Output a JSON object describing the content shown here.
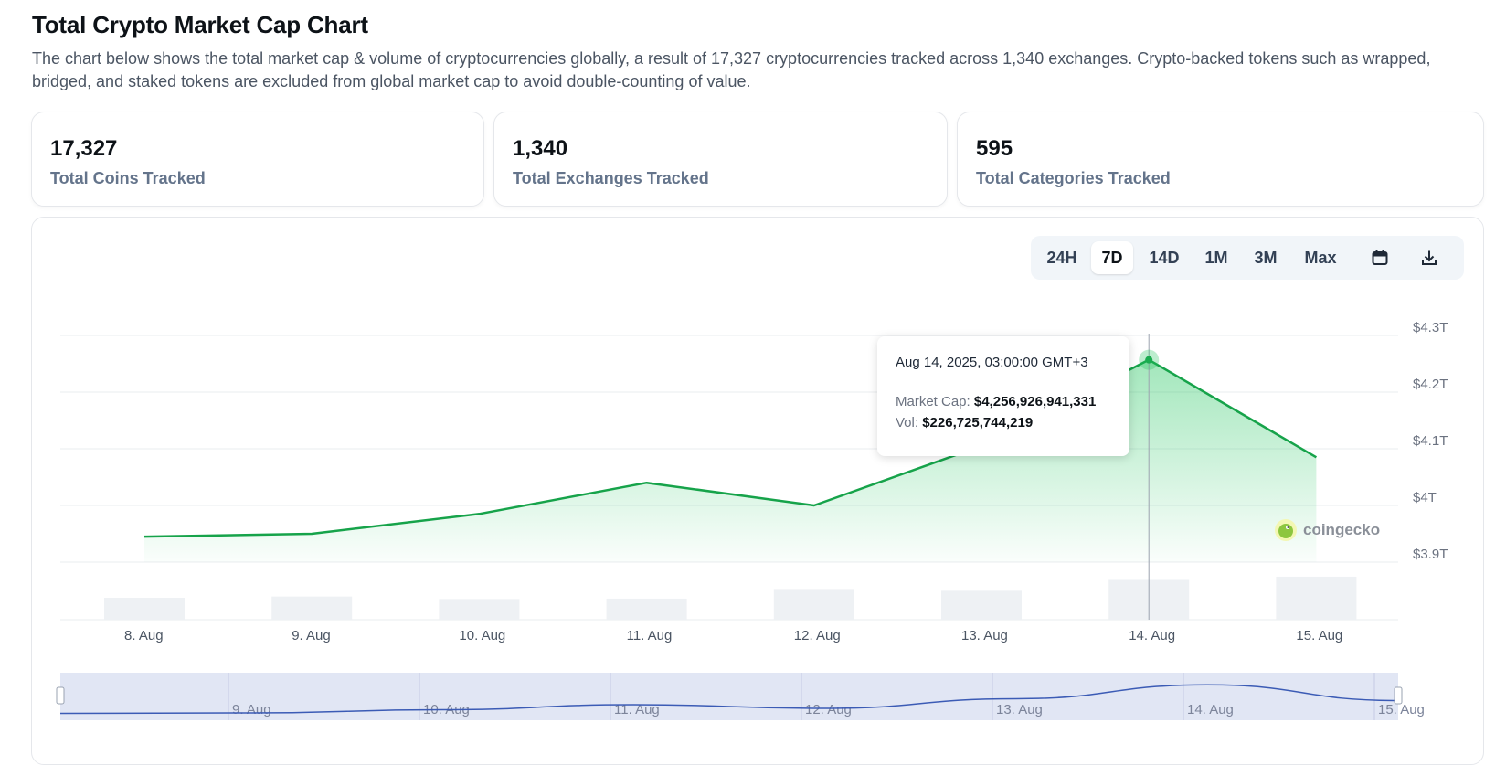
{
  "header": {
    "title": "Total Crypto Market Cap Chart",
    "description": "The chart below shows the total market cap & volume of cryptocurrencies globally, a result of 17,327 cryptocurrencies tracked across 1,340 exchanges. Crypto-backed tokens such as wrapped, bridged, and staked tokens are excluded from global market cap to avoid double-counting of value."
  },
  "stats": [
    {
      "value": "17,327",
      "label": "Total Coins Tracked"
    },
    {
      "value": "1,340",
      "label": "Total Exchanges Tracked"
    },
    {
      "value": "595",
      "label": "Total Categories Tracked"
    }
  ],
  "range_selector": {
    "options": [
      "24H",
      "7D",
      "14D",
      "1M",
      "3M",
      "Max"
    ],
    "selected": "7D",
    "icons": [
      "calendar-icon",
      "download-icon"
    ]
  },
  "tooltip": {
    "date": "Aug 14, 2025, 03:00:00 GMT+3",
    "market_cap_label": "Market Cap:",
    "market_cap_value": "$4,256,926,941,331",
    "vol_label": "Vol:",
    "vol_value": "$226,725,744,219"
  },
  "watermark": "coingecko",
  "colors": {
    "line": "#16a34a",
    "area": "#22c55e",
    "volume_bar": "#eef1f4",
    "navigator_fill": "#d7ddf0",
    "navigator_line": "#3b5bb5"
  },
  "chart_data": {
    "type": "line",
    "title": "",
    "xlabel": "",
    "ylabel": "",
    "x_tick_labels": [
      "8. Aug",
      "9. Aug",
      "10. Aug",
      "11. Aug",
      "12. Aug",
      "13. Aug",
      "14. Aug",
      "15. Aug"
    ],
    "y_tick_labels": [
      "$3.9T",
      "$4T",
      "$4.1T",
      "$4.2T",
      "$4.3T"
    ],
    "y_ticks": [
      3.9,
      4.0,
      4.1,
      4.2,
      4.3
    ],
    "ylim": [
      3.9,
      4.3
    ],
    "grid": true,
    "series": [
      {
        "name": "Market Cap",
        "x": [
          "8. Aug",
          "9. Aug",
          "10. Aug",
          "11. Aug",
          "12. Aug",
          "13. Aug",
          "14. Aug",
          "15. Aug"
        ],
        "values": [
          3.945,
          3.95,
          3.985,
          4.04,
          4.0,
          4.105,
          4.257,
          4.085
        ]
      },
      {
        "name": "Vol",
        "x": [
          "8. Aug",
          "9. Aug",
          "10. Aug",
          "11. Aug",
          "12. Aug",
          "13. Aug",
          "14. Aug",
          "15. Aug"
        ],
        "values": [
          125,
          132,
          118,
          120,
          175,
          165,
          226.7,
          245
        ]
      }
    ],
    "navigator_tick_labels": [
      "9. Aug",
      "10. Aug",
      "11. Aug",
      "12. Aug",
      "13. Aug",
      "14. Aug",
      "15. Aug"
    ],
    "highlight_index": 6
  }
}
